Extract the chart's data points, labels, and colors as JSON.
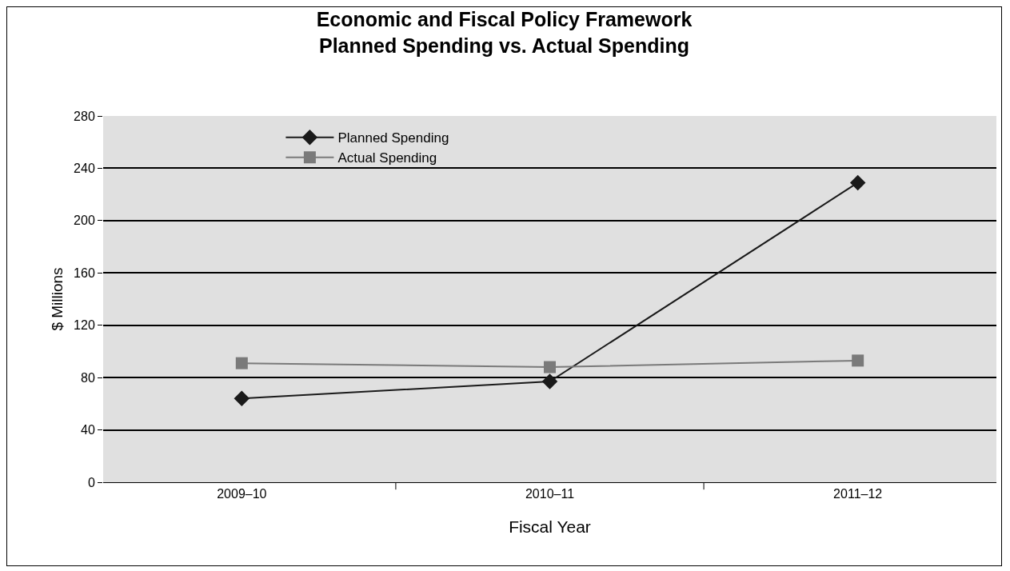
{
  "chart_data": {
    "type": "line",
    "title": "Economic and Fiscal Policy Framework\nPlanned Spending vs. Actual Spending",
    "xlabel": "Fiscal Year",
    "ylabel": "$ Millions",
    "categories": [
      "2009–10",
      "2010–11",
      "2011–12"
    ],
    "series": [
      {
        "name": "Planned Spending",
        "color": "#1a1a1a",
        "values": [
          64,
          77,
          229
        ],
        "marker": "diamond"
      },
      {
        "name": "Actual Spending",
        "color": "#7a7a7a",
        "values": [
          91,
          88,
          93
        ],
        "marker": "square"
      }
    ],
    "ylim": [
      0,
      280
    ],
    "yticks": [
      0,
      40,
      80,
      120,
      160,
      200,
      240,
      280
    ],
    "grid": "y",
    "legend": "top left",
    "line_style": "solid"
  }
}
